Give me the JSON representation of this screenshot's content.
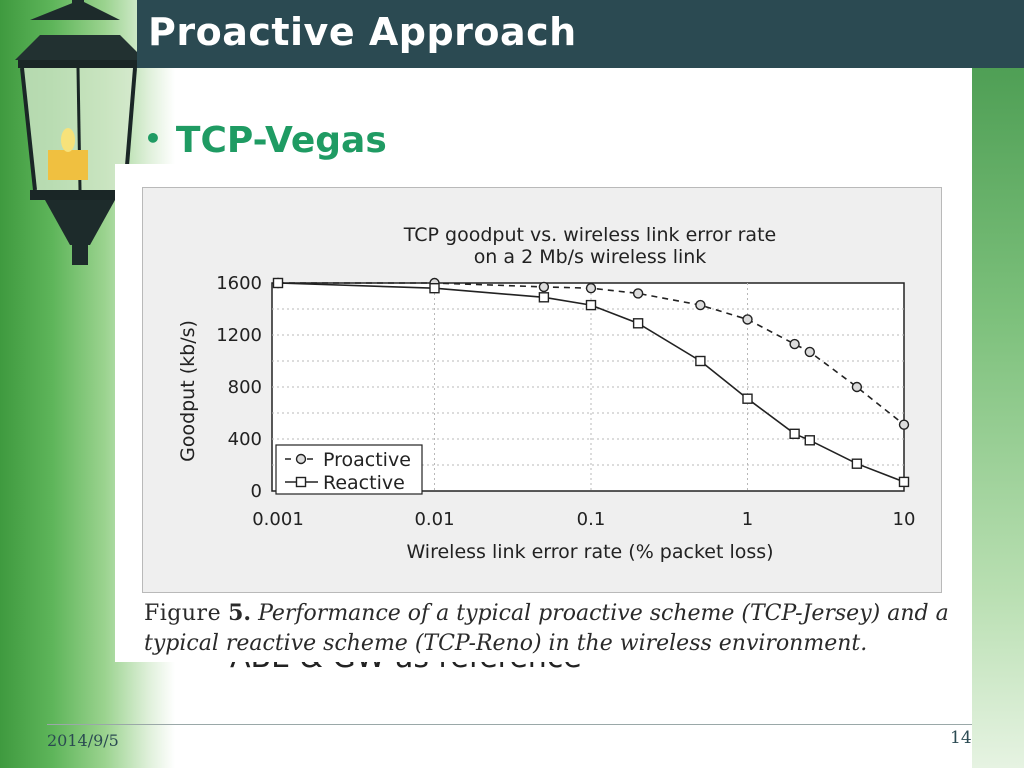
{
  "slide": {
    "title": "Proactive Approach",
    "bullet": "TCP-Vegas",
    "obscured_text": "ABE & GW as reference",
    "date": "2014/9/5",
    "page": "14"
  },
  "figure": {
    "label": "Figure",
    "number": "5.",
    "caption": "Performance of a typical proactive scheme (TCP-Jersey) and a typical reactive scheme (TCP-Reno) in the wireless environment."
  },
  "colors": {
    "title_bar": "#2b4a52",
    "accent_green": "#1f9b63",
    "series": "#222222"
  },
  "chart_data": {
    "type": "line",
    "title_line1": "TCP goodput vs. wireless link error rate",
    "title_line2": "on a 2 Mb/s wireless link",
    "xlabel": "Wireless link error rate (% packet loss)",
    "ylabel": "Goodput (kb/s)",
    "x_scale": "log",
    "xlim": [
      0.001,
      10
    ],
    "ylim": [
      0,
      1600
    ],
    "x_ticks": [
      0.001,
      0.01,
      0.1,
      1,
      10
    ],
    "x_tick_labels": [
      "0.001",
      "0.01",
      "0.1",
      "1",
      "10"
    ],
    "y_ticks": [
      0,
      400,
      800,
      1200,
      1600
    ],
    "y_tick_labels": [
      "0",
      "400",
      "800",
      "1200",
      "1600"
    ],
    "grid": true,
    "legend_position": "bottom-left",
    "series": [
      {
        "name": "Proactive",
        "style": "dashed",
        "marker": "circle",
        "x": [
          0.001,
          0.01,
          0.05,
          0.1,
          0.2,
          0.5,
          1,
          2,
          2.5,
          5,
          10
        ],
        "y": [
          1600,
          1600,
          1570,
          1560,
          1520,
          1430,
          1320,
          1130,
          1070,
          800,
          510
        ]
      },
      {
        "name": "Reactive",
        "style": "solid",
        "marker": "square",
        "x": [
          0.001,
          0.01,
          0.05,
          0.1,
          0.2,
          0.5,
          1,
          2,
          2.5,
          5,
          10
        ],
        "y": [
          1600,
          1560,
          1490,
          1430,
          1290,
          1000,
          710,
          440,
          390,
          210,
          70
        ]
      }
    ]
  }
}
